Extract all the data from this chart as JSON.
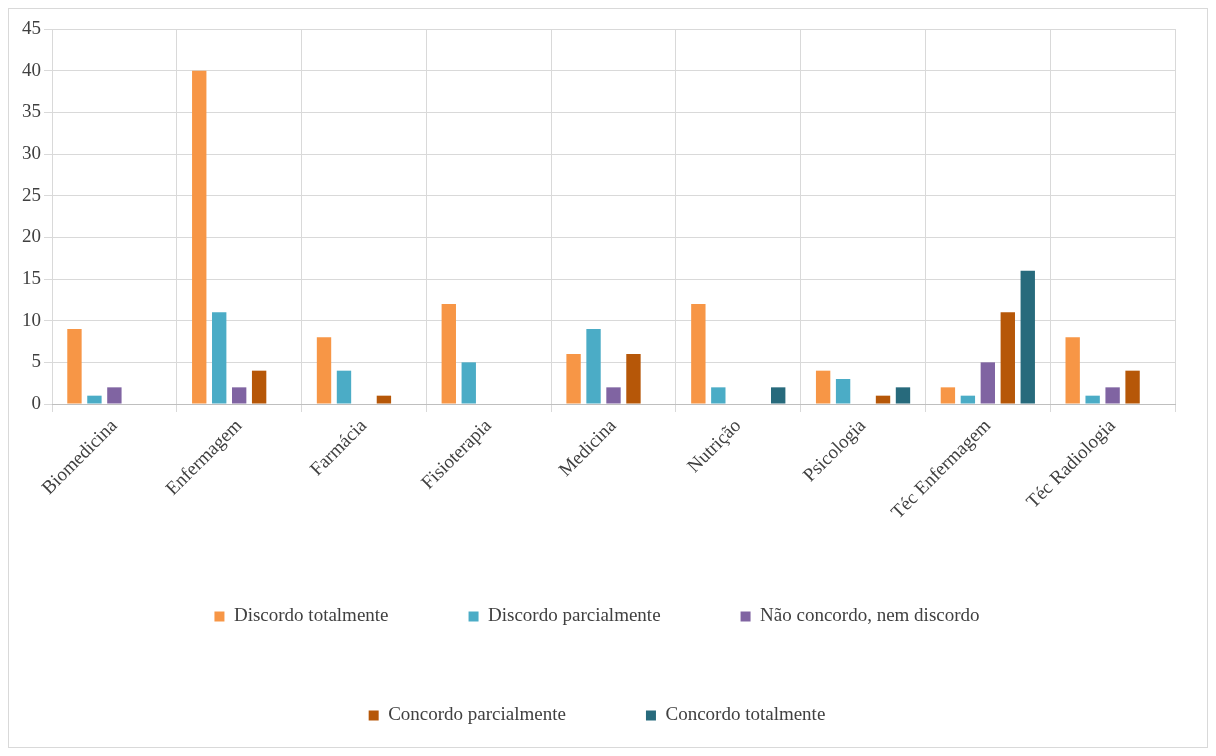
{
  "chart_data": {
    "type": "bar",
    "categories": [
      "Biomedicina",
      "Enfermagem",
      "Farmácia",
      "Fisioterapia",
      "Medicina",
      "Nutrição",
      "Psicologia",
      "Téc Enfermagem",
      "Téc Radiologia"
    ],
    "series": [
      {
        "name": "Discordo totalmente",
        "color": "#f79646",
        "values": [
          9,
          40,
          8,
          12,
          6,
          12,
          4,
          2,
          8
        ]
      },
      {
        "name": "Discordo parcialmente",
        "color": "#4bacc6",
        "values": [
          1,
          11,
          4,
          5,
          9,
          2,
          3,
          1,
          1
        ]
      },
      {
        "name": "Não concordo, nem discordo",
        "color": "#8064a2",
        "values": [
          2,
          2,
          null,
          null,
          2,
          null,
          null,
          5,
          2
        ]
      },
      {
        "name": "Concordo parcialmente",
        "color": "#b65708",
        "values": [
          null,
          4,
          1,
          null,
          6,
          null,
          1,
          11,
          4
        ]
      },
      {
        "name": "Concordo totalmente",
        "color": "#276a7c",
        "values": [
          null,
          null,
          null,
          null,
          null,
          2,
          2,
          16,
          null
        ]
      }
    ],
    "ylim": [
      0,
      45
    ],
    "yticks": [
      0,
      5,
      10,
      15,
      20,
      25,
      30,
      35,
      40,
      45
    ],
    "grid": true,
    "legend": "bottom"
  }
}
